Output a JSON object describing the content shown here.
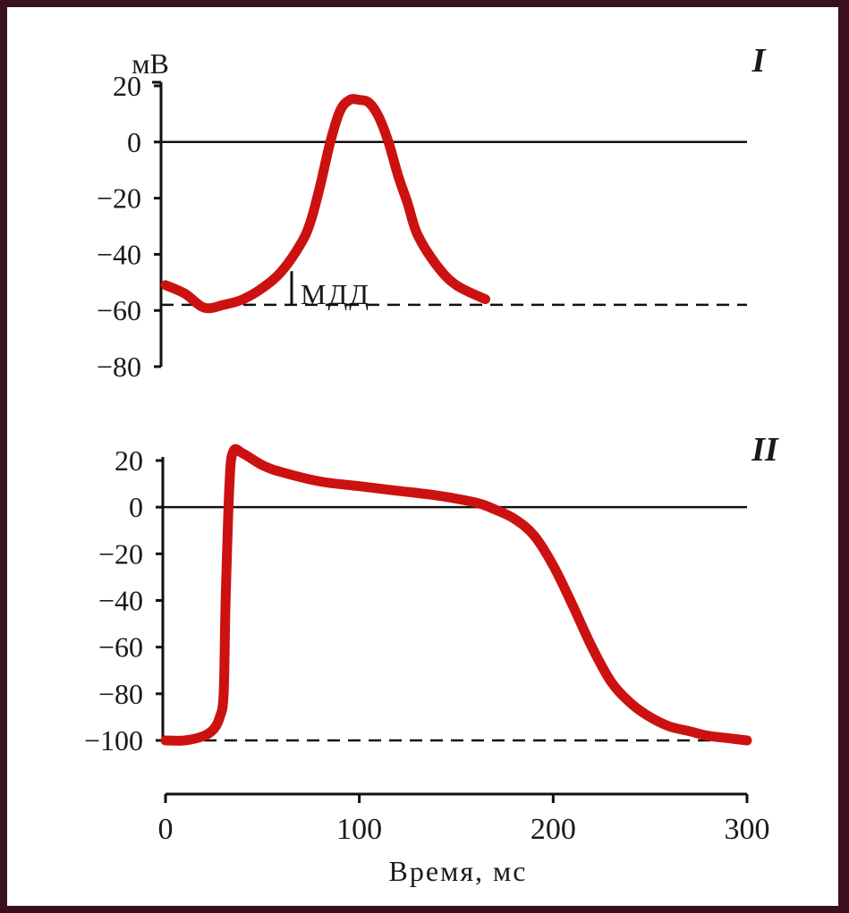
{
  "colors": {
    "trace": "#cc1111",
    "axis": "#111111",
    "frame": "#3a0f1e",
    "background": "#ffffff"
  },
  "chart_data": [
    {
      "type": "line",
      "panel_label": "I",
      "ylabel": "мВ",
      "yticks": [
        20,
        0,
        -20,
        -40,
        -60,
        -80
      ],
      "ylim": [
        -80,
        20
      ],
      "xlim": [
        0,
        300
      ],
      "zero_line": true,
      "threshold_dashed_y": -58,
      "annotation": "МДД",
      "series": [
        {
          "x": [
            0,
            10,
            20,
            30,
            40,
            50,
            60,
            70,
            75,
            80,
            85,
            90,
            95,
            100,
            105,
            110,
            115,
            120,
            125,
            130,
            140,
            150,
            165
          ],
          "y": [
            -51,
            -54,
            -59,
            -58,
            -56,
            -52,
            -46,
            -36,
            -28,
            -15,
            0,
            11,
            15,
            15,
            14,
            9,
            0,
            -12,
            -22,
            -33,
            -44,
            -51,
            -56
          ]
        }
      ]
    },
    {
      "type": "line",
      "panel_label": "II",
      "yticks": [
        20,
        0,
        -20,
        -40,
        -60,
        -80,
        -100
      ],
      "ylim": [
        -100,
        20
      ],
      "xlim": [
        0,
        300
      ],
      "xticks": [
        0,
        100,
        200,
        300
      ],
      "xlabel": "Время, мс",
      "zero_line": true,
      "threshold_dashed_y": -100,
      "series": [
        {
          "x": [
            0,
            10,
            20,
            25,
            28,
            30,
            31,
            33,
            35,
            40,
            50,
            60,
            80,
            100,
            120,
            140,
            160,
            170,
            180,
            190,
            200,
            210,
            220,
            230,
            240,
            250,
            260,
            270,
            280,
            290,
            300
          ],
          "y": [
            -100,
            -100,
            -98,
            -95,
            -90,
            -80,
            -40,
            10,
            24,
            23,
            18,
            15,
            11,
            9,
            7,
            5,
            2,
            -1,
            -5,
            -12,
            -25,
            -42,
            -60,
            -75,
            -84,
            -90,
            -94,
            -96,
            -98,
            -99,
            -100
          ]
        }
      ]
    }
  ]
}
